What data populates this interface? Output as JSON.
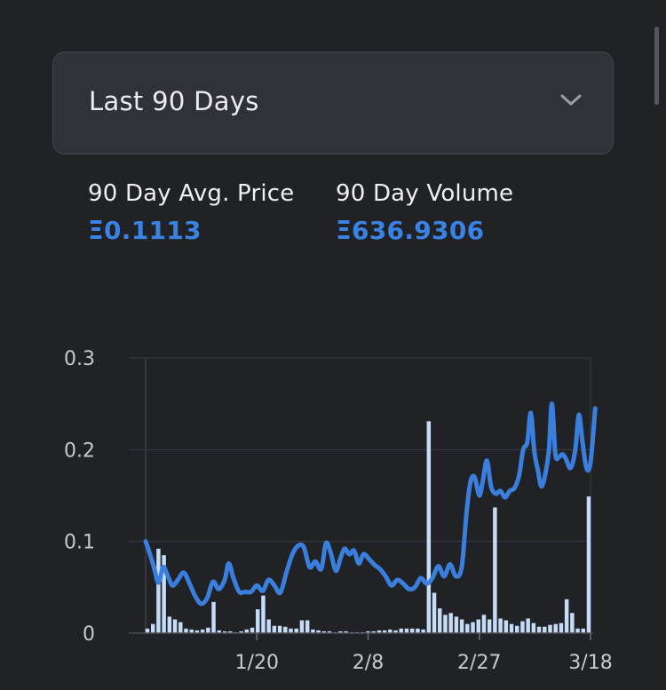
{
  "period_select": {
    "selected": "Last 90 Days"
  },
  "stats": {
    "avg_price_label": "90 Day Avg. Price",
    "avg_price_value": "Ξ0.1113",
    "volume_label": "90 Day Volume",
    "volume_value": "Ξ636.9306"
  },
  "colors": {
    "price_line": "#3a7fdd",
    "volume_bar": "#c6dcf6",
    "accent_text": "#3a82e4"
  },
  "icons": {
    "dropdown": "chevron-down-icon"
  },
  "chart_data": {
    "type": "line",
    "title": "",
    "xlabel": "",
    "ylabel": "",
    "ylim": [
      0,
      0.3
    ],
    "yticks": [
      "0",
      "0.1",
      "0.2",
      "0.3"
    ],
    "x_tick_labels": [
      {
        "label": "1/20",
        "day": 19
      },
      {
        "label": "2/8",
        "day": 38
      },
      {
        "label": "2/27",
        "day": 57
      },
      {
        "label": "3/18",
        "day": 76
      }
    ],
    "x_range": [
      0,
      76
    ],
    "grid": "horizontal",
    "series": [
      {
        "kind": "line",
        "points": [
          [
            0,
            0.1
          ],
          [
            0.8,
            0.085
          ],
          [
            1.5,
            0.07
          ],
          [
            2.2,
            0.055
          ],
          [
            3,
            0.072
          ],
          [
            3.8,
            0.062
          ],
          [
            4.6,
            0.052
          ],
          [
            5.5,
            0.058
          ],
          [
            6.5,
            0.066
          ],
          [
            7.5,
            0.054
          ],
          [
            8.5,
            0.04
          ],
          [
            9.5,
            0.032
          ],
          [
            10.5,
            0.038
          ],
          [
            11.5,
            0.056
          ],
          [
            12.5,
            0.048
          ],
          [
            13.5,
            0.058
          ],
          [
            14.2,
            0.076
          ],
          [
            15,
            0.06
          ],
          [
            16,
            0.045
          ],
          [
            17,
            0.045
          ],
          [
            18,
            0.045
          ],
          [
            19,
            0.052
          ],
          [
            20,
            0.046
          ],
          [
            21,
            0.058
          ],
          [
            22,
            0.052
          ],
          [
            23,
            0.044
          ],
          [
            24,
            0.065
          ],
          [
            25,
            0.085
          ],
          [
            26,
            0.095
          ],
          [
            27,
            0.094
          ],
          [
            28,
            0.072
          ],
          [
            29,
            0.078
          ],
          [
            30,
            0.07
          ],
          [
            30.8,
            0.098
          ],
          [
            31.6,
            0.088
          ],
          [
            32.5,
            0.068
          ],
          [
            33.3,
            0.082
          ],
          [
            34,
            0.092
          ],
          [
            34.8,
            0.086
          ],
          [
            35.6,
            0.09
          ],
          [
            36.4,
            0.076
          ],
          [
            37.2,
            0.086
          ],
          [
            38,
            0.082
          ],
          [
            39,
            0.075
          ],
          [
            40,
            0.07
          ],
          [
            41,
            0.062
          ],
          [
            42,
            0.052
          ],
          [
            43,
            0.058
          ],
          [
            44,
            0.054
          ],
          [
            45,
            0.048
          ],
          [
            46,
            0.05
          ],
          [
            47,
            0.06
          ],
          [
            48,
            0.054
          ],
          [
            49,
            0.06
          ],
          [
            50,
            0.073
          ],
          [
            51,
            0.062
          ],
          [
            52,
            0.075
          ],
          [
            53,
            0.062
          ],
          [
            54,
            0.072
          ],
          [
            54.8,
            0.13
          ],
          [
            55.5,
            0.165
          ],
          [
            56.2,
            0.17
          ],
          [
            57,
            0.15
          ],
          [
            57.6,
            0.166
          ],
          [
            58.3,
            0.188
          ],
          [
            59,
            0.16
          ],
          [
            59.8,
            0.152
          ],
          [
            60.6,
            0.155
          ],
          [
            61.4,
            0.148
          ],
          [
            62.2,
            0.155
          ],
          [
            63,
            0.158
          ],
          [
            63.8,
            0.172
          ],
          [
            64.5,
            0.2
          ],
          [
            65.2,
            0.208
          ],
          [
            65.8,
            0.24
          ],
          [
            66.4,
            0.198
          ],
          [
            67,
            0.178
          ],
          [
            67.6,
            0.16
          ],
          [
            68.3,
            0.174
          ],
          [
            68.9,
            0.2
          ],
          [
            69.4,
            0.25
          ],
          [
            70,
            0.195
          ],
          [
            70.6,
            0.192
          ],
          [
            71.2,
            0.195
          ],
          [
            71.8,
            0.19
          ],
          [
            72.6,
            0.18
          ],
          [
            73.4,
            0.2
          ],
          [
            74,
            0.238
          ],
          [
            74.6,
            0.21
          ],
          [
            75.3,
            0.18
          ],
          [
            76,
            0.186
          ],
          [
            76.8,
            0.245
          ]
        ]
      },
      {
        "kind": "bar",
        "values": [
          0.005,
          0.01,
          0.092,
          0.085,
          0.018,
          0.015,
          0.012,
          0.005,
          0.004,
          0.003,
          0.004,
          0.006,
          0.034,
          0.003,
          0.002,
          0.002,
          0.001,
          0.002,
          0.004,
          0.006,
          0.026,
          0.041,
          0.015,
          0.008,
          0.008,
          0.007,
          0.005,
          0.005,
          0.014,
          0.014,
          0.004,
          0.003,
          0.002,
          0.002,
          0.001,
          0.002,
          0.002,
          0.001,
          0.001,
          0.001,
          0.002,
          0.002,
          0.003,
          0.003,
          0.004,
          0.003,
          0.005,
          0.005,
          0.005,
          0.005,
          0.004,
          0.231,
          0.044,
          0.027,
          0.02,
          0.022,
          0.018,
          0.015,
          0.01,
          0.012,
          0.015,
          0.02,
          0.015,
          0.137,
          0.016,
          0.014,
          0.01,
          0.008,
          0.013,
          0.016,
          0.011,
          0.007,
          0.007,
          0.009,
          0.01,
          0.011,
          0.037,
          0.022,
          0.005,
          0.005,
          0.149
        ]
      }
    ]
  }
}
